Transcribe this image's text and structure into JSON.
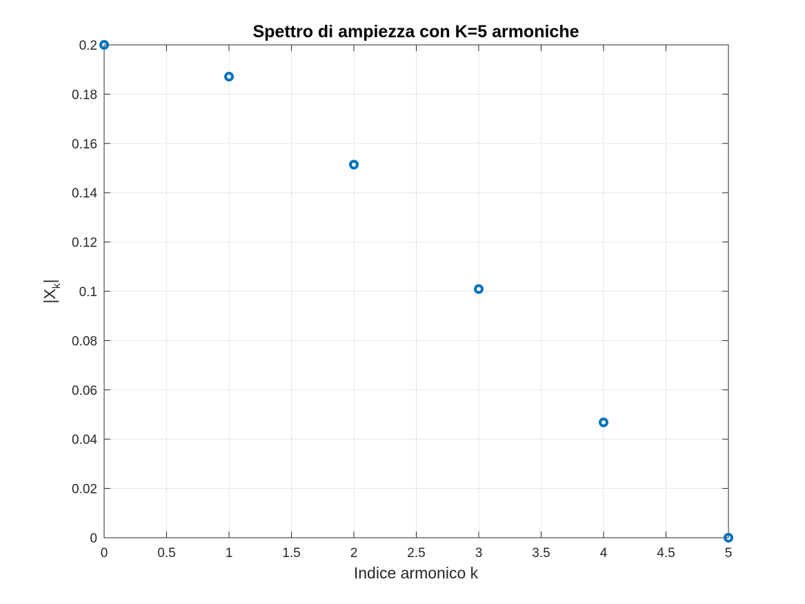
{
  "chart_data": {
    "type": "scatter",
    "title": "Spettro di ampiezza con K=5 armoniche",
    "xlabel": "Indice armonico k",
    "ylabel": {
      "base": "|X",
      "subscript": "k",
      "suffix": "|"
    },
    "xlim": [
      0,
      5
    ],
    "ylim": [
      0,
      0.2
    ],
    "grid": true,
    "x_ticks": [
      0,
      0.5,
      1,
      1.5,
      2,
      2.5,
      3,
      3.5,
      4,
      4.5,
      5
    ],
    "x_tick_labels": [
      "0",
      "0.5",
      "1",
      "1.5",
      "2",
      "2.5",
      "3",
      "3.5",
      "4",
      "4.5",
      "5"
    ],
    "y_ticks": [
      0,
      0.02,
      0.04,
      0.06,
      0.08,
      0.1,
      0.12,
      0.14,
      0.16,
      0.18,
      0.2
    ],
    "y_tick_labels": [
      "0",
      "0.02",
      "0.04",
      "0.06",
      "0.08",
      "0.1",
      "0.12",
      "0.14",
      "0.16",
      "0.18",
      "0.2"
    ],
    "series": [
      {
        "name": "|X_k|",
        "marker": "o",
        "color": "#0072BD",
        "x": [
          0,
          1,
          2,
          3,
          4,
          5
        ],
        "values": [
          0.2,
          0.1871,
          0.1514,
          0.1009,
          0.0468,
          0.0
        ]
      }
    ]
  },
  "colors": {
    "axis": "#262626",
    "grid": "#e6e6e6",
    "marker": "#0072BD",
    "background": "#ffffff"
  }
}
